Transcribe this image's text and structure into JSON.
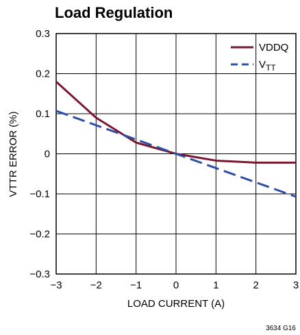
{
  "chart_data": {
    "type": "line",
    "title": "Load Regulation",
    "xlabel": "LOAD CURRENT (A)",
    "ylabel": "VTTR ERROR (%)",
    "xlim": [
      -3,
      3
    ],
    "ylim": [
      -0.3,
      0.3
    ],
    "x_ticks": [
      "−3",
      "−2",
      "−1",
      "0",
      "1",
      "2",
      "3"
    ],
    "y_ticks": [
      "0.3",
      "0.2",
      "0.1",
      "0",
      "−0.1",
      "−0.2",
      "−0.3"
    ],
    "grid": true,
    "legend_position": "top-right",
    "series": [
      {
        "name": "VDDQ",
        "color": "#7a1630",
        "style": "solid",
        "x": [
          -3,
          -2,
          -1,
          0,
          1,
          2,
          3
        ],
        "y": [
          0.18,
          0.09,
          0.028,
          0,
          -0.017,
          -0.022,
          -0.022
        ]
      },
      {
        "name_main": "V",
        "name_sub": "TT",
        "color": "#2b4fa8",
        "style": "dashed",
        "x": [
          -3,
          3
        ],
        "y": [
          0.107,
          -0.107
        ]
      }
    ],
    "figure_code": "3634 G16"
  }
}
